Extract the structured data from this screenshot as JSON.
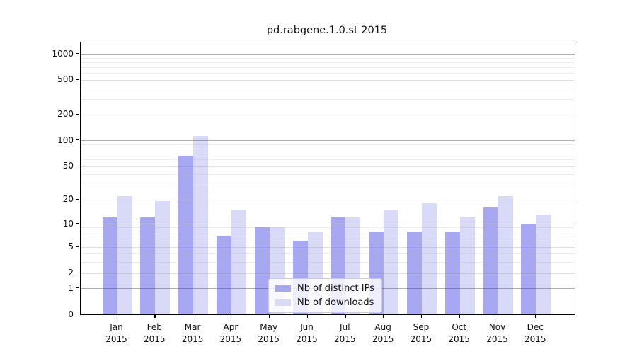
{
  "chart_data": {
    "type": "bar",
    "title": "pd.rabgene.1.0.st 2015",
    "months": [
      "Jan",
      "Feb",
      "Mar",
      "Apr",
      "May",
      "Jun",
      "Jul",
      "Aug",
      "Sep",
      "Oct",
      "Nov",
      "Dec"
    ],
    "year": "2015",
    "series": [
      {
        "name": "Nb of distinct IPs",
        "color": "#a8a8f2",
        "values": [
          12,
          12,
          66,
          7,
          9,
          6,
          12,
          8,
          8,
          8,
          16,
          10
        ]
      },
      {
        "name": "Nb of downloads",
        "color": "#d9d9f8",
        "values": [
          22,
          19,
          113,
          15,
          9,
          8,
          12,
          15,
          18,
          12,
          22,
          13
        ]
      }
    ],
    "yscale": "log1p",
    "yticks": [
      0,
      1,
      2,
      5,
      10,
      20,
      50,
      100,
      200,
      500,
      1000
    ],
    "ylim": [
      0,
      1350
    ],
    "grid": true,
    "legend_position": "lower center",
    "xlabel": "",
    "ylabel": ""
  }
}
